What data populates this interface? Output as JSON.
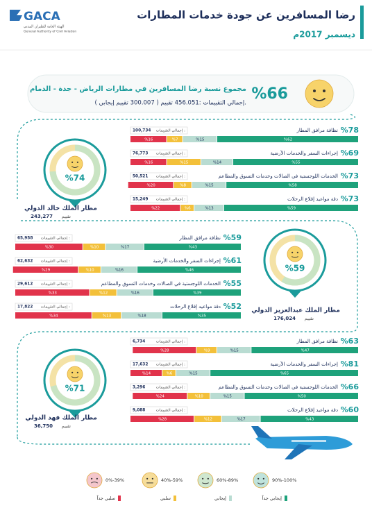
{
  "header": {
    "logo": "GACA",
    "logo_sub": "الهيئة العامة للطيران المدني",
    "logo_sub_en": "General Authority of Civil Aviation",
    "title": "رضا المسافرين عن جودة خدمات المطارات",
    "date": "ديسمبر 2017م"
  },
  "summary": {
    "percent": "%66",
    "title": "مجموع نسبة رضا المسافرين في مطارات الرياض - جدة - الدمام",
    "totals": "إجمالي التقييمات :456.051  تقييم ( 300.007 تقييم إيجابي )."
  },
  "total_label": "إجمالي التقييمات :",
  "rating_word": "تقييم",
  "segments": [
    {
      "name": "إيجابي جداً",
      "range": "90%-100%",
      "color": "#1ea27b",
      "face": "#bfe3dc"
    },
    {
      "name": "إيجابي",
      "range": "60%-89%",
      "color": "#b9dcd2",
      "face": "#cfe7d0"
    },
    {
      "name": "سلبي",
      "range": "40%-59%",
      "color": "#f3c03a",
      "face": "#f6dd9a"
    },
    {
      "name": "سلبي جداً",
      "range": "0%-39%",
      "color": "#e1334b",
      "face": "#f4c6cc"
    }
  ],
  "airports": [
    {
      "name": "مطار الملك خالد الدولي",
      "percent_value": 74,
      "percent_label": "%74",
      "total": "243,277",
      "services": [
        {
          "name": "نظافة مرافق المطار",
          "percent": "%78",
          "total": "100,734",
          "values": [
            62,
            15,
            7,
            16
          ],
          "value_labels": [
            "%62",
            "%15",
            "%7",
            "%16"
          ]
        },
        {
          "name": "إجراءات السفر والخدمات الأرضية",
          "percent": "%69",
          "total": "76,773",
          "values": [
            55,
            14,
            15,
            16
          ],
          "value_labels": [
            "%55",
            "%14",
            "%15",
            "%16"
          ]
        },
        {
          "name": "الخدمات اللوجستية في الصالات وخدمات التسوق والمطاعم",
          "percent": "%73",
          "total": "50,521",
          "values": [
            58,
            15,
            8,
            20
          ],
          "value_labels": [
            "%58",
            "%15",
            "%8",
            "%20"
          ]
        },
        {
          "name": "دقة مواعيد إقلاع الرحلات",
          "percent": "%73",
          "total": "15,249",
          "values": [
            59,
            13,
            6,
            22
          ],
          "value_labels": [
            "%59",
            "%13",
            "%6",
            "%22"
          ]
        }
      ]
    },
    {
      "name": "مطار الملك عبدالعزيز الدولي",
      "percent_value": 59,
      "percent_label": "%59",
      "total": "176,024",
      "services": [
        {
          "name": "نظافة مرافق المطار",
          "percent": "%59",
          "total": "65,958",
          "values": [
            43,
            17,
            10,
            30
          ],
          "value_labels": [
            "%43",
            "%17",
            "%10",
            "%30"
          ]
        },
        {
          "name": "إجراءات السفر والخدمات الأرضية",
          "percent": "%61",
          "total": "62,632",
          "values": [
            46,
            16,
            10,
            29
          ],
          "value_labels": [
            "%46",
            "%16",
            "%10",
            "%29"
          ]
        },
        {
          "name": "الخدمات اللوجستية في الصالات وخدمات التسوق والمطاعم",
          "percent": "%55",
          "total": "29,612",
          "values": [
            39,
            16,
            12,
            33
          ],
          "value_labels": [
            "%39",
            "%16",
            "%12",
            "%33"
          ]
        },
        {
          "name": "دقة مواعيد إقلاع الرحلات",
          "percent": "%52",
          "total": "17,822",
          "values": [
            35,
            18,
            13,
            34
          ],
          "value_labels": [
            "%35",
            "%18",
            "%13",
            "%34"
          ]
        }
      ]
    },
    {
      "name": "مطار الملك فهد الدولي",
      "percent_value": 71,
      "percent_label": "%71",
      "total": "36,750",
      "services": [
        {
          "name": "نظافة مرافق المطار",
          "percent": "%63",
          "total": "6,734",
          "values": [
            47,
            15,
            9,
            28
          ],
          "value_labels": [
            "%47",
            "%15",
            "%9",
            "%28"
          ]
        },
        {
          "name": "إجراءات السفر والخدمات الأرضية",
          "percent": "%81",
          "total": "17,632",
          "values": [
            65,
            15,
            6,
            14
          ],
          "value_labels": [
            "%65",
            "%15",
            "%6",
            "%14"
          ]
        },
        {
          "name": "الخدمات اللوجستية في الصالات وخدمات التسوق والمطاعم",
          "percent": "%66",
          "total": "3,296",
          "values": [
            50,
            15,
            10,
            24
          ],
          "value_labels": [
            "%50",
            "%15",
            "%10",
            "%24"
          ]
        },
        {
          "name": "دقة مواعيد إقلاع الرحلات",
          "percent": "%60",
          "total": "9,088",
          "values": [
            43,
            17,
            12,
            28
          ],
          "value_labels": [
            "%43",
            "%17",
            "%12",
            "%28"
          ]
        }
      ]
    }
  ]
}
